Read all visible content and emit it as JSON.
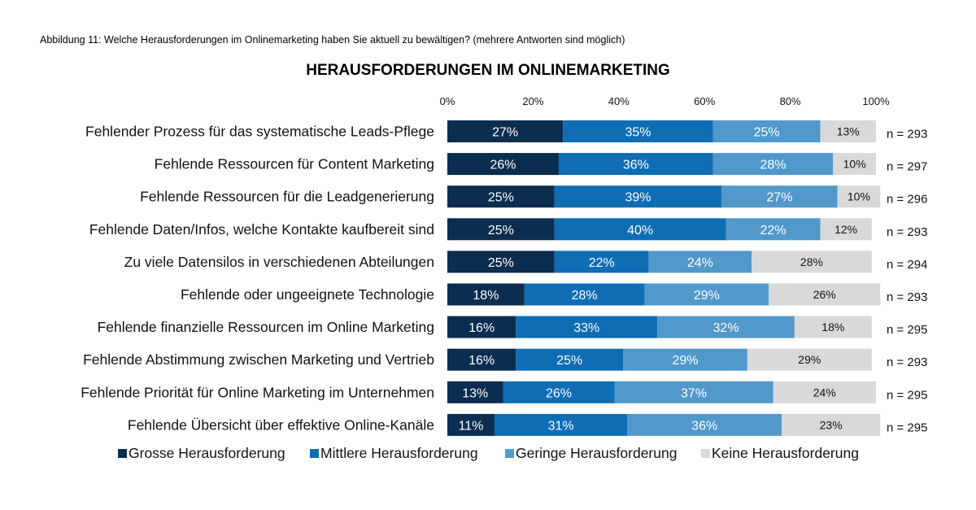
{
  "caption": "Abbildung 11: Welche Herausforderungen im Onlinemarketing haben Sie aktuell zu bewältigen? (mehrere Antworten sind möglich)",
  "colors": {
    "gross": "#0b2d4f",
    "mittel": "#0f6db4",
    "gering": "#5198cb",
    "keine": "#d9d9d9"
  },
  "chart_data": {
    "type": "bar",
    "orientation": "horizontal",
    "stacked": true,
    "title": "HERAUSFORDERUNGEN IM ONLINEMARKETING",
    "xlim": [
      0,
      100
    ],
    "x_ticks": [
      "0%",
      "20%",
      "40%",
      "60%",
      "80%",
      "100%"
    ],
    "legend_position": "bottom",
    "categories": [
      "Fehlender Prozess für das systematische Leads-Pflege",
      "Fehlende Ressourcen für Content Marketing",
      "Fehlende Ressourcen für die Leadgenerierung",
      "Fehlende Daten/Infos, welche Kontakte kaufbereit sind",
      "Zu viele Datensilos in verschiedenen Abteilungen",
      "Fehlende oder ungeeignete Technologie",
      "Fehlende finanzielle Ressourcen im Online Marketing",
      "Fehlende Abstimmung zwischen Marketing und Vertrieb",
      "Fehlende Priorität für Online Marketing im Unternehmen",
      "Fehlende Übersicht über effektive Online-Kanäle"
    ],
    "series": [
      {
        "name": "Grosse Herausforderung",
        "values": [
          27,
          26,
          25,
          25,
          25,
          18,
          16,
          16,
          13,
          11
        ]
      },
      {
        "name": "Mittlere Herausforderung",
        "values": [
          35,
          36,
          39,
          40,
          22,
          28,
          33,
          25,
          26,
          31
        ]
      },
      {
        "name": "Geringe Herausforderung",
        "values": [
          25,
          28,
          27,
          22,
          24,
          29,
          32,
          29,
          37,
          36
        ]
      },
      {
        "name": "Keine Herausforderung",
        "values": [
          13,
          10,
          10,
          12,
          28,
          26,
          18,
          29,
          24,
          23
        ]
      }
    ],
    "n_labels": [
      "n = 293",
      "n = 297",
      "n = 296",
      "n = 293",
      "n = 294",
      "n = 293",
      "n = 295",
      "n = 293",
      "n = 295",
      "n = 295"
    ]
  }
}
